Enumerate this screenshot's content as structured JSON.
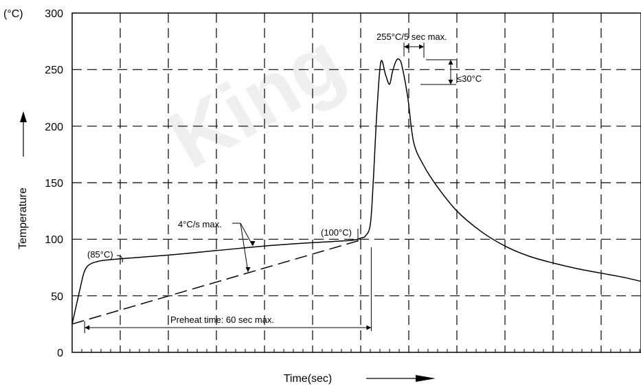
{
  "watermark": "King",
  "chart_data": {
    "type": "line",
    "ylabel": "Temperature",
    "yunit": "(°C)",
    "xlabel": "Time(sec)",
    "ylim": [
      0,
      300
    ],
    "yticks": [
      0,
      50,
      100,
      150,
      200,
      250,
      300
    ],
    "grid": true,
    "series": [
      {
        "x": [
          0,
          10,
          13,
          17,
          25,
          40,
          100,
          150,
          200,
          250,
          290,
          300,
          305,
          310,
          313,
          317,
          321,
          326,
          330,
          333,
          337,
          340,
          343,
          349,
          355,
          365,
          380,
          400,
          425,
          450,
          475,
          500,
          525,
          550,
          575,
          595
        ],
        "values": [
          25,
          63,
          72,
          77,
          80,
          82,
          86,
          90,
          94,
          97,
          99,
          101,
          103,
          113,
          150,
          215,
          257,
          245,
          237,
          248,
          258,
          259,
          253,
          225,
          186,
          166,
          146,
          125,
          107,
          94,
          85,
          79,
          74,
          70,
          66,
          62
        ]
      },
      {
        "style": "dashed",
        "x": [
          0,
          303
        ],
        "values": [
          25,
          100
        ]
      }
    ],
    "annotations": {
      "peak": "255°C/5 sec max.",
      "dip": "≤30°C",
      "ramp": "4°C/s max.",
      "p100": "(100°C)",
      "p85": "(85°C)",
      "preheat": "Preheat time: 60 sec max."
    }
  }
}
